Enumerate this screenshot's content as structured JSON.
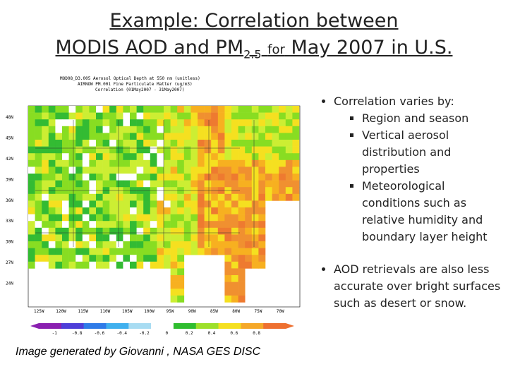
{
  "header": {
    "title_line1": "Example: Correlation between",
    "title_line2_main": "MODIS AOD and PM",
    "title_line2_sub": "2.5",
    "title_line2_small": "for",
    "title_line2_end": "May 2007 in U.S."
  },
  "map": {
    "header_lines": [
      "MOD08_D3.005 Aerosol Optical Depth at 550 nm  (unitless)",
      "AIRNOW PM.001 Fine Particulate Matter (ug/m3)",
      "Correlation (01May2007 - 31May2007)"
    ],
    "y_labels": [
      "48N",
      "45N",
      "42N",
      "39N",
      "36N",
      "33N",
      "30N",
      "27N",
      "24N"
    ],
    "x_labels": [
      "125W",
      "120W",
      "115W",
      "110W",
      "105W",
      "100W",
      "95W",
      "90W",
      "85W",
      "80W",
      "75W",
      "70W"
    ],
    "colorbar_labels": [
      "-1",
      "-0.8",
      "-0.6",
      "-0.4",
      "-0.2",
      "0",
      "0.2",
      "0.4",
      "0.6",
      "0.8"
    ]
  },
  "bullets": [
    {
      "text": "Correlation varies by:",
      "sub": [
        "Region and season",
        "Vertical aerosol distribution and properties",
        "Meteorological conditions such as relative humidity and boundary layer height"
      ]
    },
    {
      "text": "AOD retrievals are also less accurate over bright surfaces such as desert or snow.",
      "sub": []
    }
  ],
  "caption": "Image generated by Giovanni , NASA GES DISC"
}
